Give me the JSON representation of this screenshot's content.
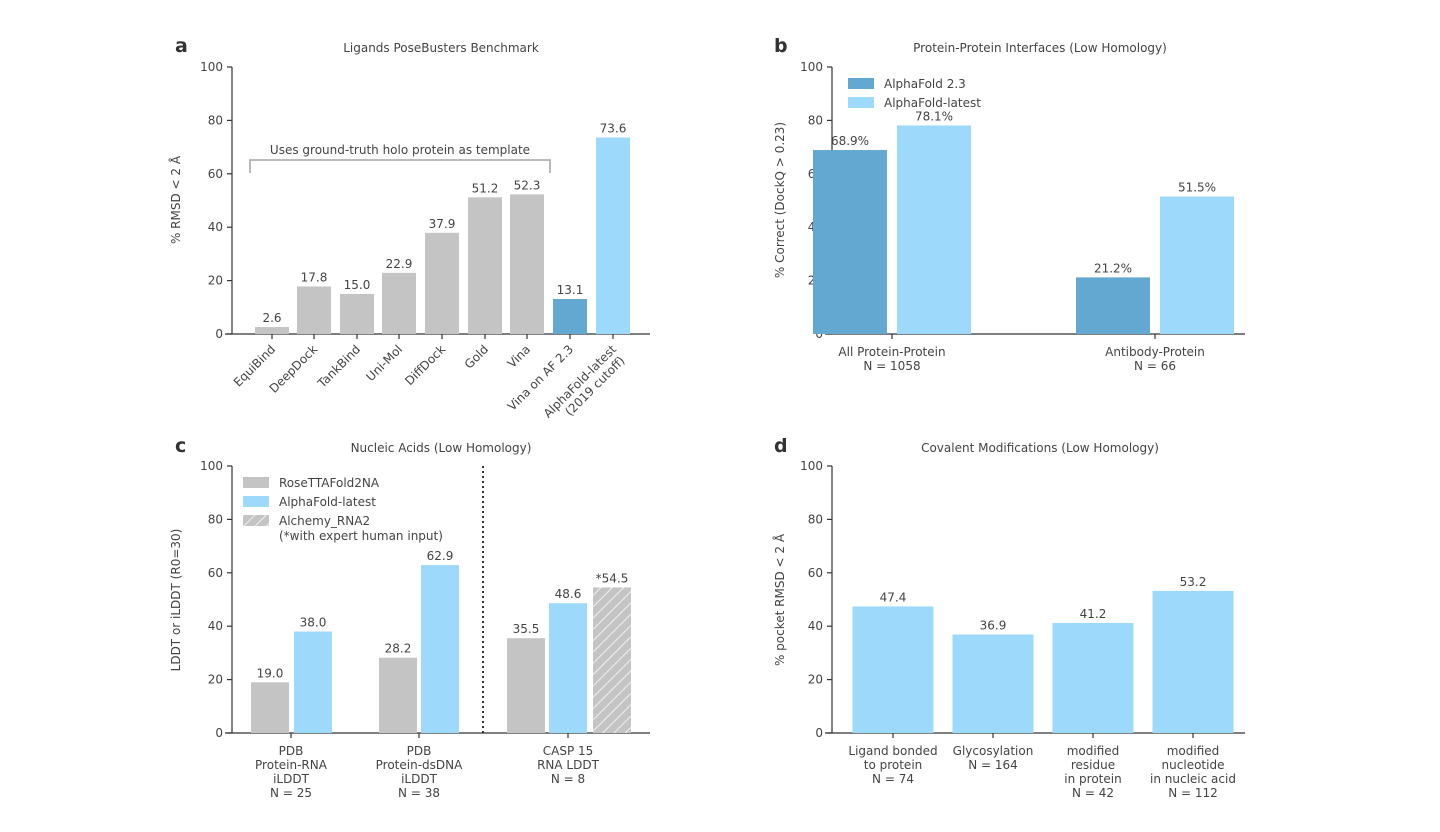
{
  "colors": {
    "gray": "#c4c4c4",
    "af23": "#62a8d0",
    "aflatest": "#9dd9fb",
    "axis": "#333333"
  },
  "chart_data": [
    {
      "panel": "a",
      "type": "bar",
      "title": "Ligands PoseBusters Benchmark",
      "ylabel": "% RMSD < 2 Å",
      "ylim": [
        0,
        100
      ],
      "yticks": [
        0,
        20,
        40,
        60,
        80,
        100
      ],
      "categories": [
        "EquiBind",
        "DeepDock",
        "TankBind",
        "Uni-Mol",
        "DiffDock",
        "Gold",
        "Vina",
        "Vina on AF 2.3",
        "AlphaFold-latest\n(2019 cutoff)"
      ],
      "values": [
        2.6,
        17.8,
        15.0,
        22.9,
        37.9,
        51.2,
        52.3,
        13.1,
        73.6
      ],
      "labels": [
        "2.6",
        "17.8",
        "15.0",
        "22.9",
        "37.9",
        "51.2",
        "52.3",
        "13.1",
        "73.6"
      ],
      "bar_colors": [
        "gray",
        "gray",
        "gray",
        "gray",
        "gray",
        "gray",
        "gray",
        "af23",
        "aflatest"
      ],
      "annotation": "Uses ground-truth holo protein as template",
      "grid": false
    },
    {
      "panel": "b",
      "type": "bar",
      "title": "Protein-Protein Interfaces (Low Homology)",
      "ylabel": "% Correct (DockQ > 0.23)",
      "ylim": [
        0,
        100
      ],
      "yticks": [
        0,
        20,
        40,
        60,
        80,
        100
      ],
      "categories": [
        "All Protein-Protein\nN = 1058",
        "Antibody-Protein\nN = 66"
      ],
      "series": [
        {
          "name": "AlphaFold 2.3",
          "color": "af23",
          "values": [
            68.9,
            21.2
          ],
          "labels": [
            "68.9%",
            "21.2%"
          ]
        },
        {
          "name": "AlphaFold-latest",
          "color": "aflatest",
          "values": [
            78.1,
            51.5
          ],
          "labels": [
            "78.1%",
            "51.5%"
          ]
        }
      ],
      "legend": "top-left",
      "grid": false
    },
    {
      "panel": "c",
      "type": "bar",
      "title": "Nucleic Acids (Low Homology)",
      "ylabel": "LDDT or iLDDT (R0=30)",
      "ylim": [
        0,
        100
      ],
      "yticks": [
        0,
        20,
        40,
        60,
        80,
        100
      ],
      "categories": [
        "PDB\nProtein-RNA\niLDDT\nN = 25",
        "PDB\nProtein-dsDNA\niLDDT\nN = 38",
        "CASP 15\nRNA LDDT\nN = 8"
      ],
      "series": [
        {
          "name": "RoseTTAFold2NA",
          "color": "gray",
          "values": [
            19.0,
            28.2,
            35.5
          ],
          "labels": [
            "19.0",
            "28.2",
            "35.5"
          ]
        },
        {
          "name": "AlphaFold-latest",
          "color": "aflatest",
          "values": [
            38.0,
            62.9,
            48.6
          ],
          "labels": [
            "38.0",
            "62.9",
            "48.6"
          ]
        },
        {
          "name": "Alchemy_RNA2\n(*with expert human input)",
          "color": "hatch",
          "values": [
            null,
            null,
            54.5
          ],
          "labels": [
            "",
            "",
            "*54.5"
          ]
        }
      ],
      "legend": "top-left",
      "grid": false
    },
    {
      "panel": "d",
      "type": "bar",
      "title": "Covalent Modifications (Low Homology)",
      "ylabel": "% pocket RMSD < 2 Å",
      "ylim": [
        0,
        100
      ],
      "yticks": [
        0,
        20,
        40,
        60,
        80,
        100
      ],
      "categories": [
        "Ligand bonded\nto protein\nN = 74",
        "Glycosylation\nN = 164",
        "modified\nresidue\nin protein\nN = 42",
        "modified\nnucleotide\nin nucleic acid\nN = 112"
      ],
      "values": [
        47.4,
        36.9,
        41.2,
        53.2
      ],
      "labels": [
        "47.4",
        "36.9",
        "41.2",
        "53.2"
      ],
      "bar_colors": [
        "aflatest",
        "aflatest",
        "aflatest",
        "aflatest"
      ],
      "grid": false
    }
  ]
}
